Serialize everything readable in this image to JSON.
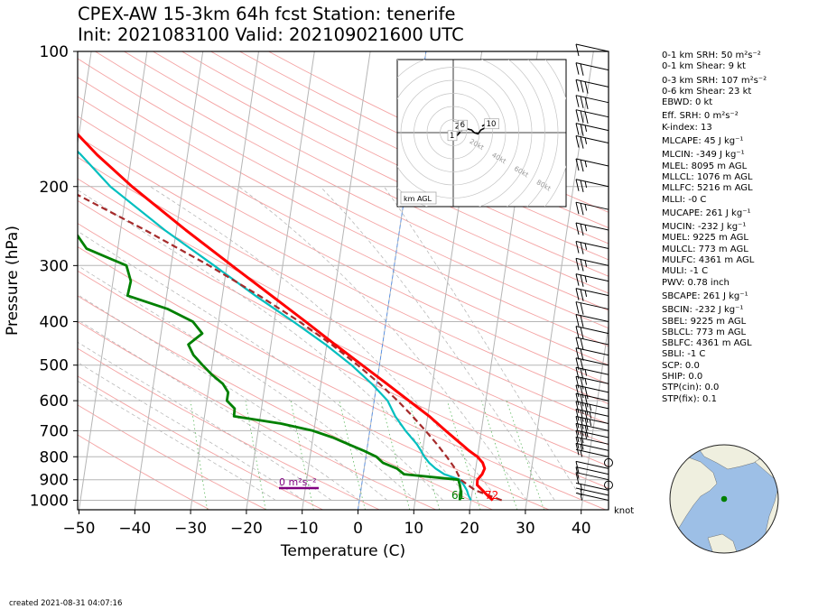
{
  "title": {
    "line1": "CPEX-AW 15-3km  64h fcst  Station: tenerife",
    "line2": "Init: 2021083100  Valid: 202109021600 UTC"
  },
  "footer": "created 2021-08-31 04:07:16",
  "stats": [
    {
      "text": "0-1 km SRH: 50 m²s⁻²",
      "gap": false
    },
    {
      "text": "0-1 km Shear: 9 kt",
      "gap": false
    },
    {
      "text": "0-3 km SRH: 107 m²s⁻²",
      "gap": true
    },
    {
      "text": "0-6 km Shear: 23 kt",
      "gap": false
    },
    {
      "text": "EBWD: 0 kt",
      "gap": false
    },
    {
      "text": "Eff. SRH: 0 m²s⁻²",
      "gap": true
    },
    {
      "text": "K-index: 13",
      "gap": false
    },
    {
      "text": "MLCAPE: 45 J kg⁻¹",
      "gap": true
    },
    {
      "text": "MLCIN: -349 J kg⁻¹",
      "gap": true
    },
    {
      "text": "MLEL: 8095 m AGL",
      "gap": false
    },
    {
      "text": "MLLCL: 1076 m AGL",
      "gap": false
    },
    {
      "text": "MLLFC: 5216 m AGL",
      "gap": false
    },
    {
      "text": "MLLI: -0 C",
      "gap": false
    },
    {
      "text": "MUCAPE: 261 J kg⁻¹",
      "gap": true
    },
    {
      "text": "MUCIN: -232 J kg⁻¹",
      "gap": true
    },
    {
      "text": "MUEL: 9225 m AGL",
      "gap": false
    },
    {
      "text": "MULCL: 773 m AGL",
      "gap": false
    },
    {
      "text": "MULFC: 4361 m AGL",
      "gap": false
    },
    {
      "text": "MULI: -1 C",
      "gap": false
    },
    {
      "text": "PWV: 0.78 inch",
      "gap": false
    },
    {
      "text": "SBCAPE: 261 J kg⁻¹",
      "gap": true
    },
    {
      "text": "SBCIN: -232 J kg⁻¹",
      "gap": true
    },
    {
      "text": "SBEL: 9225 m AGL",
      "gap": false
    },
    {
      "text": "SBLCL: 773 m AGL",
      "gap": false
    },
    {
      "text": "SBLFC: 4361 m AGL",
      "gap": false
    },
    {
      "text": "SBLI: -1 C",
      "gap": false
    },
    {
      "text": "SCP: 0.0",
      "gap": false
    },
    {
      "text": "SHIP: 0.0",
      "gap": false
    },
    {
      "text": "STP(cin): 0.0",
      "gap": false
    },
    {
      "text": "STP(fix): 0.1",
      "gap": false
    }
  ],
  "chart_data": [
    {
      "type": "line",
      "subtype": "skew-T log-p",
      "xlabel": "Temperature (C)",
      "ylabel": "Pressure (hPa)",
      "xlim": [
        -50,
        45
      ],
      "ylim": [
        1050,
        100
      ],
      "y_scale": "log",
      "x_ticks": [
        -50,
        -40,
        -30,
        -20,
        -10,
        0,
        10,
        20,
        30,
        40
      ],
      "y_ticks": [
        100,
        200,
        300,
        400,
        500,
        600,
        700,
        800,
        900,
        1000
      ],
      "x_tick_labels": [
        "−50",
        "−40",
        "−30",
        "−20",
        "−10",
        "0",
        "10",
        "20",
        "30",
        "40"
      ],
      "wind_unit_label": "knot",
      "colors": {
        "temperature": "#ff0000",
        "dewpoint": "#008000",
        "wetbulb": "#00bfbf",
        "parcel": "#a52a2a",
        "helicity": "#800080"
      },
      "temperature": {
        "p": [
          1000,
          975,
          950,
          925,
          900,
          875,
          850,
          825,
          800,
          775,
          750,
          700,
          650,
          600,
          550,
          500,
          450,
          400,
          350,
          300,
          250,
          200,
          170,
          150,
          130,
          115,
          100
        ],
        "t": [
          23.9,
          22.8,
          21.8,
          20.7,
          20.6,
          21.3,
          21.6,
          21.1,
          20.0,
          18.3,
          16.8,
          13.6,
          10.3,
          6.2,
          1.8,
          -3.1,
          -8.5,
          -14.4,
          -21.2,
          -29.1,
          -38.3,
          -49.1,
          -56.2,
          -61.0,
          -65.9,
          -68.5,
          -69.9
        ]
      },
      "dewpoint": {
        "p": [
          1000,
          975,
          950,
          925,
          900,
          875,
          850,
          825,
          800,
          775,
          750,
          725,
          700,
          675,
          650,
          625,
          600,
          575,
          550,
          525,
          500,
          475,
          450,
          425,
          400,
          375,
          350,
          325,
          300,
          275,
          250,
          225,
          200,
          180,
          160,
          150,
          140,
          130,
          120,
          110,
          100
        ],
        "td": [
          18.0,
          17.9,
          17.9,
          17.6,
          17.2,
          7.3,
          5.9,
          3.2,
          1.9,
          -0.6,
          -3.5,
          -6.4,
          -10.2,
          -16.1,
          -24.7,
          -24.8,
          -26.4,
          -26.4,
          -27.6,
          -29.8,
          -31.7,
          -33.6,
          -34.8,
          -32.6,
          -34.6,
          -39.4,
          -47.0,
          -46.8,
          -48.0,
          -55.6,
          -58.4,
          -61.8,
          -64.0,
          -68.8,
          -71.4,
          -74.0,
          -76.4,
          -78.0,
          -80.1,
          -80.1,
          -80.1
        ]
      },
      "wetbulb": {
        "p": [
          1000,
          975,
          950,
          925,
          900,
          875,
          850,
          825,
          800,
          775,
          750,
          700,
          650,
          600,
          550,
          500,
          450,
          400,
          350,
          300,
          250,
          200,
          170,
          150,
          130,
          115,
          100
        ],
        "tw": [
          20.0,
          19.4,
          19.0,
          18.3,
          17.5,
          14.5,
          12.8,
          11.5,
          10.5,
          9.7,
          8.8,
          6.4,
          4.2,
          2.4,
          -0.9,
          -5.0,
          -10.2,
          -16.6,
          -24.1,
          -32.3,
          -42.1,
          -53.0,
          -59.1,
          -64.3,
          -69.1,
          -72.1,
          -73.4
        ]
      },
      "parcel": {
        "p": [
          1000,
          950,
          900,
          850,
          800,
          750,
          700,
          650,
          600,
          550,
          500,
          450,
          400,
          350,
          300,
          250,
          200,
          150,
          100
        ],
        "t": [
          25.5,
          20.5,
          17.6,
          16.3,
          14.5,
          12.4,
          10.0,
          7.3,
          4.2,
          0.5,
          -3.9,
          -9.1,
          -15.5,
          -23.4,
          -33.2,
          -45.6,
          -61.7,
          -83.5,
          -114.6
        ]
      },
      "surface_labels": {
        "temperature_f": "72",
        "dewpoint_f": "61"
      },
      "helicity_label": "0 m²s⁻²",
      "wind_barbs": [
        {
          "p": 1000,
          "speed_kt": 5
        },
        {
          "p": 975,
          "speed_kt": 5
        },
        {
          "p": 950,
          "speed_kt": 5
        },
        {
          "p": 925,
          "speed_kt": 0
        },
        {
          "p": 900,
          "speed_kt": 10
        },
        {
          "p": 875,
          "speed_kt": 10
        },
        {
          "p": 850,
          "speed_kt": 10
        },
        {
          "p": 825,
          "speed_kt": 0
        },
        {
          "p": 800,
          "speed_kt": 5
        },
        {
          "p": 775,
          "speed_kt": 15
        },
        {
          "p": 750,
          "speed_kt": 20
        },
        {
          "p": 725,
          "speed_kt": 25
        },
        {
          "p": 700,
          "speed_kt": 30
        },
        {
          "p": 675,
          "speed_kt": 35
        },
        {
          "p": 650,
          "speed_kt": 35
        },
        {
          "p": 625,
          "speed_kt": 35
        },
        {
          "p": 600,
          "speed_kt": 30
        },
        {
          "p": 575,
          "speed_kt": 30
        },
        {
          "p": 550,
          "speed_kt": 25
        },
        {
          "p": 525,
          "speed_kt": 25
        },
        {
          "p": 500,
          "speed_kt": 20
        },
        {
          "p": 475,
          "speed_kt": 20
        },
        {
          "p": 450,
          "speed_kt": 20
        },
        {
          "p": 425,
          "speed_kt": 20
        },
        {
          "p": 400,
          "speed_kt": 20
        },
        {
          "p": 375,
          "speed_kt": 20
        },
        {
          "p": 350,
          "speed_kt": 25
        },
        {
          "p": 325,
          "speed_kt": 25
        },
        {
          "p": 300,
          "speed_kt": 25
        },
        {
          "p": 275,
          "speed_kt": 25
        },
        {
          "p": 250,
          "speed_kt": 25
        },
        {
          "p": 225,
          "speed_kt": 25
        },
        {
          "p": 200,
          "speed_kt": 25
        },
        {
          "p": 180,
          "speed_kt": 25
        },
        {
          "p": 160,
          "speed_kt": 25
        },
        {
          "p": 150,
          "speed_kt": 25
        },
        {
          "p": 140,
          "speed_kt": 30
        },
        {
          "p": 130,
          "speed_kt": 30
        },
        {
          "p": 120,
          "speed_kt": 30
        },
        {
          "p": 110,
          "speed_kt": 20
        },
        {
          "p": 100,
          "speed_kt": 10
        }
      ]
    },
    {
      "type": "line",
      "subtype": "hodograph",
      "ring_labels": [
        "20kt",
        "40kt",
        "60kt",
        "80kt"
      ],
      "km_labels": [
        "1",
        "2",
        "6",
        "10"
      ],
      "legend_text": "km AGL",
      "u_kt": [
        -2,
        0,
        1,
        3,
        5,
        4,
        6,
        8,
        10,
        14,
        16,
        19,
        21,
        25,
        27,
        30,
        32,
        31,
        28,
        26,
        24,
        22
      ],
      "v_kt": [
        -5,
        -4,
        -3,
        -2,
        0,
        3,
        5,
        4,
        3,
        2,
        0,
        -1,
        2,
        4,
        6,
        7,
        6,
        5,
        5,
        6,
        6,
        5
      ]
    }
  ]
}
